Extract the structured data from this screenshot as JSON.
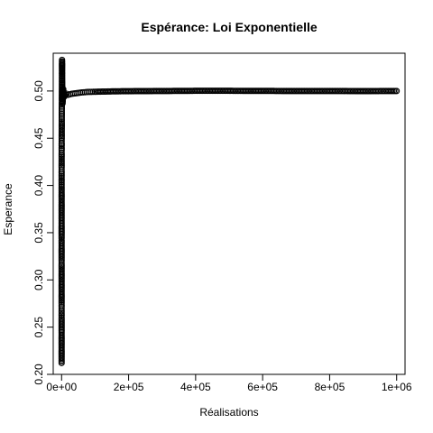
{
  "chart_data": {
    "type": "scatter",
    "title": "Espérance: Loi Exponentielle",
    "xlabel": "Réalisations",
    "ylabel": "Esperance",
    "xlim": [
      -25000,
      1025000
    ],
    "ylim": [
      0.2,
      0.54
    ],
    "x_ticks": [
      0,
      200000,
      400000,
      600000,
      800000,
      1000000
    ],
    "x_tick_labels": [
      "0e+00",
      "2e+05",
      "4e+05",
      "6e+05",
      "8e+05",
      "1e+06"
    ],
    "y_ticks": [
      0.2,
      0.25,
      0.3,
      0.35,
      0.4,
      0.45,
      0.5
    ],
    "y_tick_labels": [
      "0.20",
      "0.25",
      "0.30",
      "0.35",
      "0.40",
      "0.45",
      "0.50"
    ],
    "grid": false,
    "legend": "none",
    "marker": "open-circle",
    "series": [
      {
        "points": [
          [
            1,
            0.212
          ],
          [
            2,
            0.246
          ],
          [
            3,
            0.247
          ],
          [
            4,
            0.26
          ],
          [
            5,
            0.262
          ],
          [
            6,
            0.268
          ],
          [
            7,
            0.272
          ],
          [
            8,
            0.28
          ],
          [
            10,
            0.301
          ],
          [
            12,
            0.316
          ],
          [
            14,
            0.32
          ],
          [
            17,
            0.342
          ],
          [
            20,
            0.344
          ],
          [
            25,
            0.376
          ],
          [
            30,
            0.394
          ],
          [
            35,
            0.397
          ],
          [
            40,
            0.402
          ],
          [
            50,
            0.41
          ],
          [
            60,
            0.415
          ],
          [
            70,
            0.419
          ],
          [
            80,
            0.422
          ],
          [
            100,
            0.43
          ],
          [
            120,
            0.433
          ],
          [
            140,
            0.437
          ],
          [
            160,
            0.44
          ],
          [
            180,
            0.442
          ],
          [
            200,
            0.445
          ],
          [
            250,
            0.449
          ],
          [
            300,
            0.455
          ],
          [
            350,
            0.461
          ],
          [
            400,
            0.467
          ],
          [
            450,
            0.472
          ],
          [
            500,
            0.479
          ],
          [
            600,
            0.486
          ],
          [
            700,
            0.49
          ],
          [
            800,
            0.495
          ],
          [
            900,
            0.5
          ],
          [
            1000,
            0.508
          ],
          [
            1100,
            0.518
          ],
          [
            1200,
            0.527
          ],
          [
            1300,
            0.533
          ],
          [
            1400,
            0.529
          ],
          [
            1500,
            0.52
          ],
          [
            1700,
            0.51
          ],
          [
            2000,
            0.5
          ],
          [
            2500,
            0.493
          ],
          [
            3000,
            0.487
          ],
          [
            3500,
            0.491
          ],
          [
            4000,
            0.497
          ],
          [
            5000,
            0.502
          ],
          [
            6000,
            0.498
          ],
          [
            8000,
            0.494
          ],
          [
            10000,
            0.495
          ],
          [
            12000,
            0.496
          ],
          [
            15000,
            0.497
          ],
          [
            20000,
            0.496
          ],
          [
            25000,
            0.4965
          ],
          [
            30000,
            0.497
          ],
          [
            40000,
            0.4975
          ],
          [
            50000,
            0.498
          ],
          [
            60000,
            0.4985
          ],
          [
            80000,
            0.499
          ],
          [
            100000,
            0.4992
          ],
          [
            150000,
            0.4996
          ],
          [
            200000,
            0.4998
          ],
          [
            300000,
            0.5
          ],
          [
            400000,
            0.5002
          ],
          [
            500000,
            0.5002
          ],
          [
            600000,
            0.5001
          ],
          [
            700000,
            0.5
          ],
          [
            800000,
            0.5
          ],
          [
            900000,
            0.4999
          ],
          [
            1000000,
            0.5
          ]
        ]
      }
    ]
  }
}
